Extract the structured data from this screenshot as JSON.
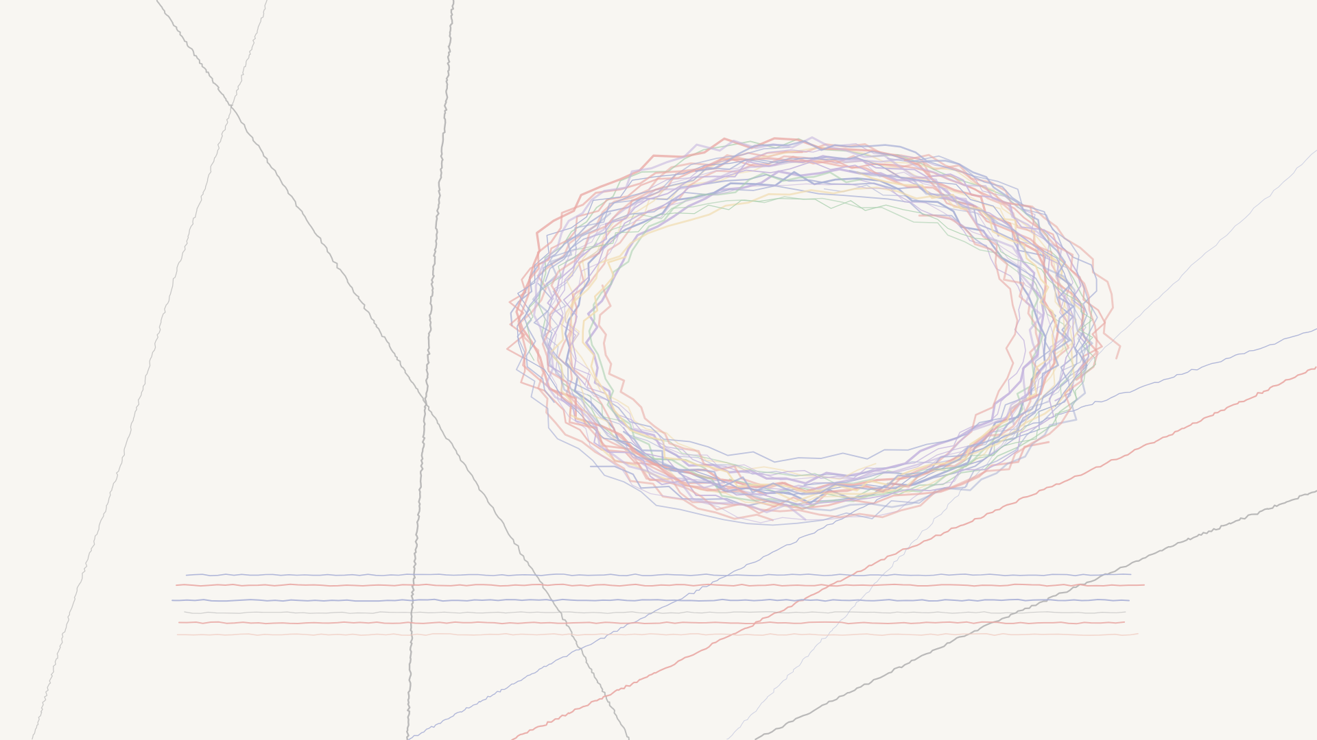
{
  "artwork": {
    "background_color": "#f8f6f2",
    "palette": {
      "gray": "#b3b3b3",
      "red": "#e9a8a4",
      "blue": "#a9b0d6",
      "purple": "#c6b6de",
      "green": "#a9cfae",
      "yellow": "#f1dcb0",
      "peach": "#f0c9bd"
    },
    "ellipse_loop_count": 34,
    "horizontal_line_count": 6,
    "diagonal_line_count": 7
  }
}
